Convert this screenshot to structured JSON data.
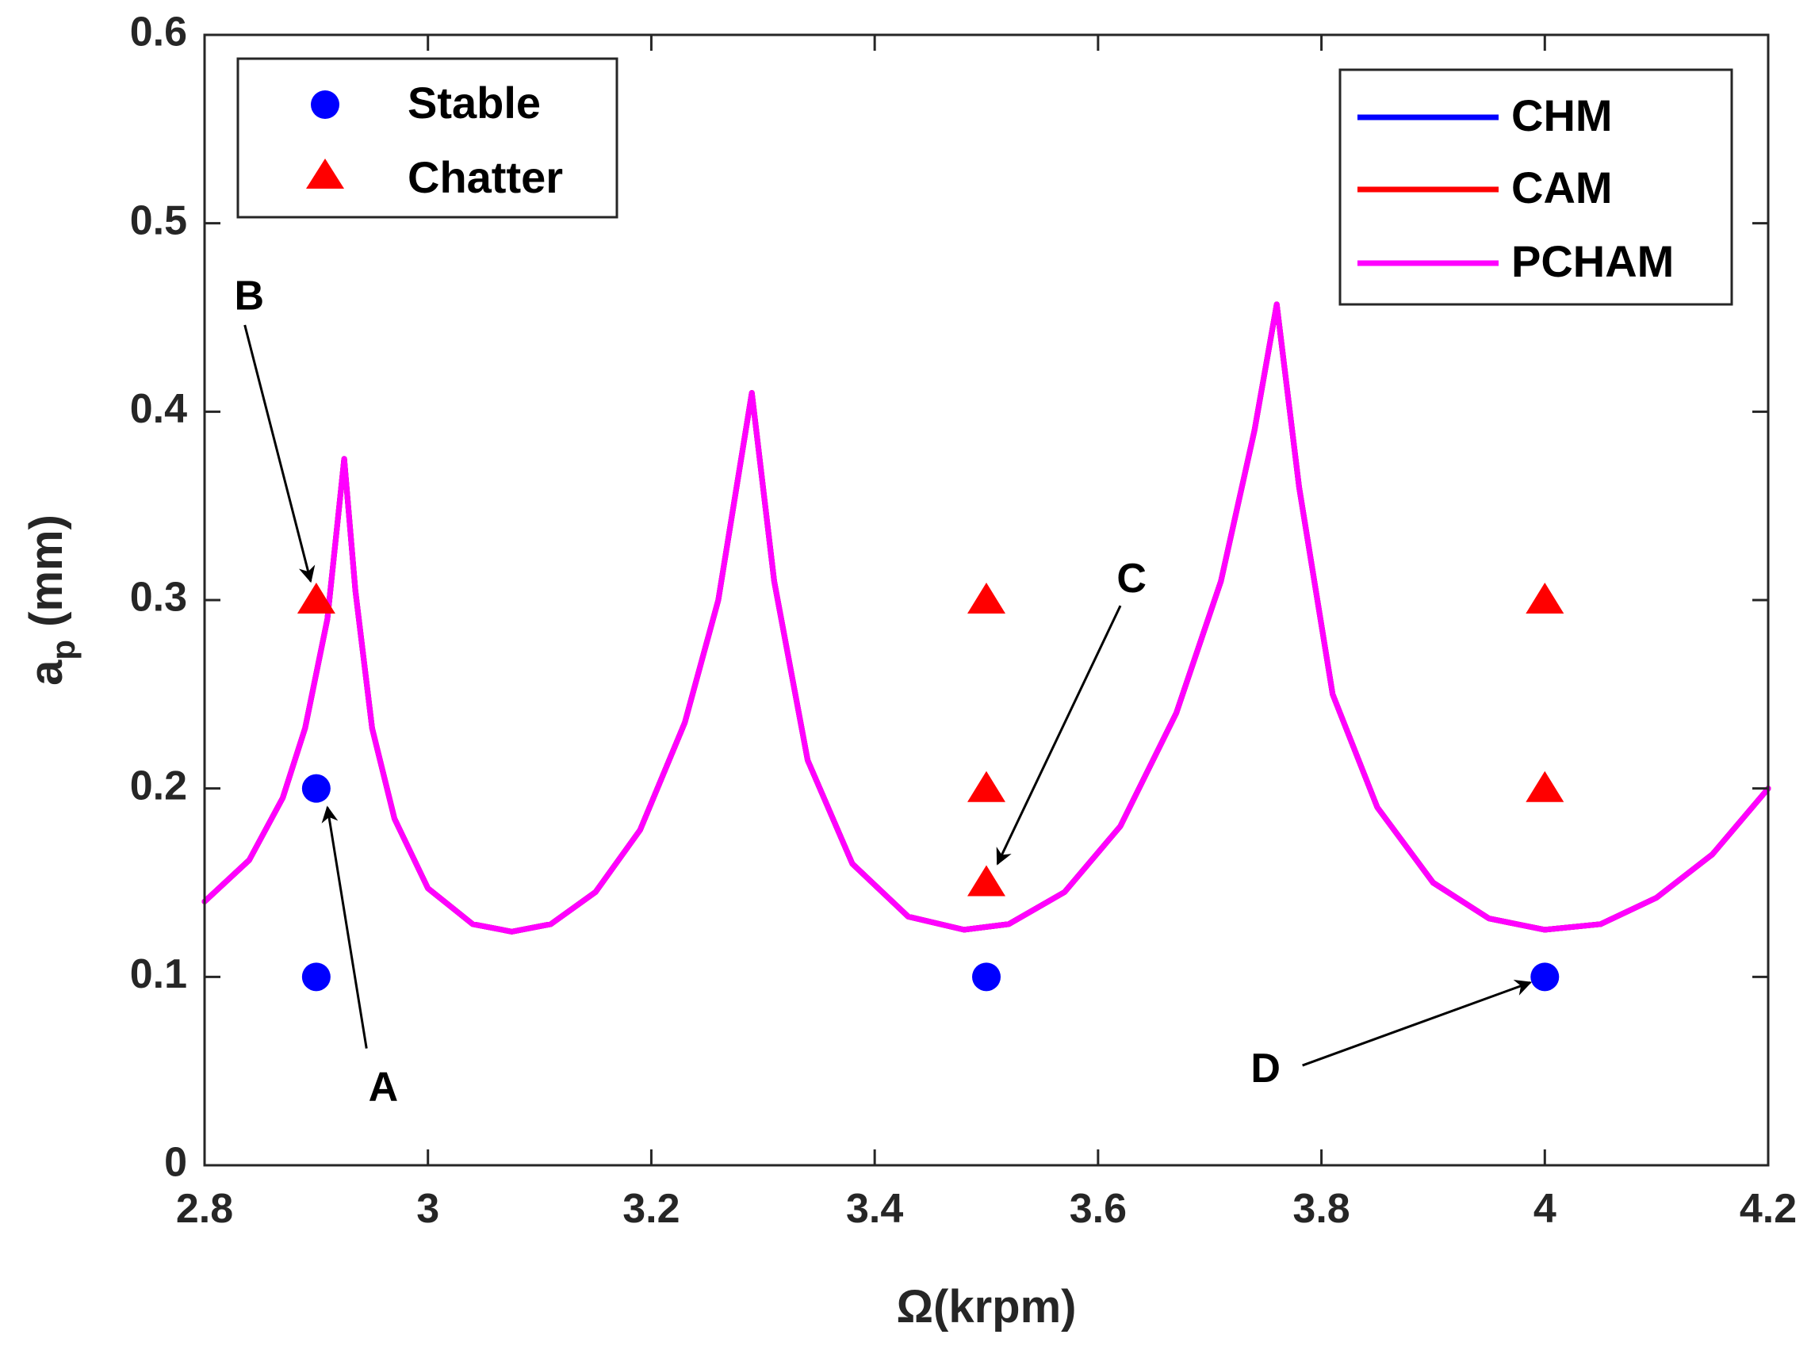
{
  "chart_data": {
    "type": "line",
    "title": "",
    "xlabel": "Ω(krpm)",
    "ylabel_main": "a",
    "ylabel_sub": "p",
    "ylabel_unit": " (mm)",
    "xlim": [
      2.8,
      4.2
    ],
    "ylim": [
      0,
      0.6
    ],
    "xticks": [
      2.8,
      3.0,
      3.2,
      3.4,
      3.6,
      3.8,
      4.0,
      4.2
    ],
    "xtick_labels": [
      "2.8",
      "3",
      "3.2",
      "3.4",
      "3.6",
      "3.8",
      "4",
      "4.2"
    ],
    "yticks": [
      0,
      0.1,
      0.2,
      0.3,
      0.4,
      0.5,
      0.6
    ],
    "ytick_labels": [
      "0",
      "0.1",
      "0.2",
      "0.3",
      "0.4",
      "0.5",
      "0.6"
    ],
    "grid": false,
    "series": [
      {
        "name": "CHM",
        "color": "#0000ff",
        "points": [
          [
            2.8,
            0.14
          ],
          [
            2.84,
            0.162
          ],
          [
            2.87,
            0.195
          ],
          [
            2.89,
            0.232
          ],
          [
            2.91,
            0.29
          ],
          [
            2.925,
            0.375
          ],
          [
            2.935,
            0.305
          ],
          [
            2.95,
            0.232
          ],
          [
            2.97,
            0.184
          ],
          [
            3.0,
            0.147
          ],
          [
            3.04,
            0.128
          ],
          [
            3.075,
            0.124
          ],
          [
            3.11,
            0.128
          ],
          [
            3.15,
            0.145
          ],
          [
            3.19,
            0.178
          ],
          [
            3.23,
            0.235
          ],
          [
            3.26,
            0.3
          ],
          [
            3.29,
            0.41
          ],
          [
            3.31,
            0.31
          ],
          [
            3.34,
            0.215
          ],
          [
            3.38,
            0.16
          ],
          [
            3.43,
            0.132
          ],
          [
            3.48,
            0.125
          ],
          [
            3.52,
            0.128
          ],
          [
            3.57,
            0.145
          ],
          [
            3.62,
            0.18
          ],
          [
            3.67,
            0.24
          ],
          [
            3.71,
            0.31
          ],
          [
            3.74,
            0.39
          ],
          [
            3.76,
            0.457
          ],
          [
            3.78,
            0.36
          ],
          [
            3.81,
            0.25
          ],
          [
            3.85,
            0.19
          ],
          [
            3.9,
            0.15
          ],
          [
            3.95,
            0.131
          ],
          [
            4.0,
            0.125
          ],
          [
            4.05,
            0.128
          ],
          [
            4.1,
            0.142
          ],
          [
            4.15,
            0.165
          ],
          [
            4.2,
            0.2
          ]
        ]
      },
      {
        "name": "CAM",
        "color": "#ff0000",
        "points": [
          [
            2.8,
            0.14
          ],
          [
            2.84,
            0.162
          ],
          [
            2.87,
            0.195
          ],
          [
            2.89,
            0.232
          ],
          [
            2.91,
            0.29
          ],
          [
            2.925,
            0.375
          ],
          [
            2.935,
            0.305
          ],
          [
            2.95,
            0.232
          ],
          [
            2.97,
            0.184
          ],
          [
            3.0,
            0.147
          ],
          [
            3.04,
            0.128
          ],
          [
            3.075,
            0.124
          ],
          [
            3.11,
            0.128
          ],
          [
            3.15,
            0.145
          ],
          [
            3.19,
            0.178
          ],
          [
            3.23,
            0.235
          ],
          [
            3.26,
            0.3
          ],
          [
            3.29,
            0.41
          ],
          [
            3.31,
            0.31
          ],
          [
            3.34,
            0.215
          ],
          [
            3.38,
            0.16
          ],
          [
            3.43,
            0.132
          ],
          [
            3.48,
            0.125
          ],
          [
            3.52,
            0.128
          ],
          [
            3.57,
            0.145
          ],
          [
            3.62,
            0.18
          ],
          [
            3.67,
            0.24
          ],
          [
            3.71,
            0.31
          ],
          [
            3.74,
            0.39
          ],
          [
            3.76,
            0.457
          ],
          [
            3.78,
            0.36
          ],
          [
            3.81,
            0.25
          ],
          [
            3.85,
            0.19
          ],
          [
            3.9,
            0.15
          ],
          [
            3.95,
            0.131
          ],
          [
            4.0,
            0.125
          ],
          [
            4.05,
            0.128
          ],
          [
            4.1,
            0.142
          ],
          [
            4.15,
            0.165
          ],
          [
            4.2,
            0.2
          ]
        ]
      },
      {
        "name": "PCHAM",
        "color": "#ff00ff",
        "points": [
          [
            2.8,
            0.14
          ],
          [
            2.84,
            0.162
          ],
          [
            2.87,
            0.195
          ],
          [
            2.89,
            0.232
          ],
          [
            2.91,
            0.29
          ],
          [
            2.925,
            0.375
          ],
          [
            2.935,
            0.305
          ],
          [
            2.95,
            0.232
          ],
          [
            2.97,
            0.184
          ],
          [
            3.0,
            0.147
          ],
          [
            3.04,
            0.128
          ],
          [
            3.075,
            0.124
          ],
          [
            3.11,
            0.128
          ],
          [
            3.15,
            0.145
          ],
          [
            3.19,
            0.178
          ],
          [
            3.23,
            0.235
          ],
          [
            3.26,
            0.3
          ],
          [
            3.29,
            0.41
          ],
          [
            3.31,
            0.31
          ],
          [
            3.34,
            0.215
          ],
          [
            3.38,
            0.16
          ],
          [
            3.43,
            0.132
          ],
          [
            3.48,
            0.125
          ],
          [
            3.52,
            0.128
          ],
          [
            3.57,
            0.145
          ],
          [
            3.62,
            0.18
          ],
          [
            3.67,
            0.24
          ],
          [
            3.71,
            0.31
          ],
          [
            3.74,
            0.39
          ],
          [
            3.76,
            0.457
          ],
          [
            3.78,
            0.36
          ],
          [
            3.81,
            0.25
          ],
          [
            3.85,
            0.19
          ],
          [
            3.9,
            0.15
          ],
          [
            3.95,
            0.131
          ],
          [
            4.0,
            0.125
          ],
          [
            4.05,
            0.128
          ],
          [
            4.1,
            0.142
          ],
          [
            4.15,
            0.165
          ],
          [
            4.2,
            0.2
          ]
        ]
      }
    ],
    "markers": {
      "stable": {
        "name": "Stable",
        "color": "#0000ff",
        "shape": "circle",
        "points": [
          [
            2.9,
            0.2
          ],
          [
            2.9,
            0.1
          ],
          [
            3.5,
            0.1
          ],
          [
            4.0,
            0.1
          ]
        ]
      },
      "chatter": {
        "name": "Chatter",
        "color": "#ff0000",
        "shape": "triangle",
        "points": [
          [
            2.9,
            0.3
          ],
          [
            3.5,
            0.3
          ],
          [
            3.5,
            0.2
          ],
          [
            3.5,
            0.15
          ],
          [
            4.0,
            0.3
          ],
          [
            4.0,
            0.2
          ]
        ]
      }
    },
    "annotations": [
      {
        "label": "A",
        "text_at": [
          2.96,
          0.04
        ],
        "arrow_from": [
          2.945,
          0.062
        ],
        "arrow_to": [
          2.91,
          0.19
        ]
      },
      {
        "label": "B",
        "text_at": [
          2.84,
          0.46
        ],
        "arrow_from": [
          2.836,
          0.446
        ],
        "arrow_to": [
          2.895,
          0.31
        ]
      },
      {
        "label": "C",
        "text_at": [
          3.63,
          0.31
        ],
        "arrow_from": [
          3.62,
          0.297
        ],
        "arrow_to": [
          3.51,
          0.16
        ]
      },
      {
        "label": "D",
        "text_at": [
          3.75,
          0.05
        ],
        "arrow_from": [
          3.783,
          0.053
        ],
        "arrow_to": [
          3.987,
          0.097
        ]
      }
    ],
    "legend_markers": {
      "placement": "top-left",
      "entries": [
        "Stable",
        "Chatter"
      ]
    },
    "legend_lines": {
      "placement": "top-right",
      "entries": [
        "CHM",
        "CAM",
        "PCHAM"
      ]
    }
  }
}
